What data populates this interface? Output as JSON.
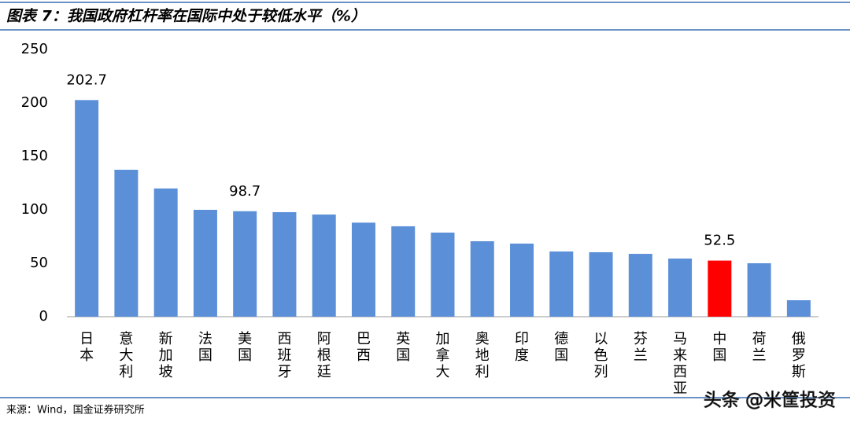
{
  "header": {
    "title": "图表 7：我国政府杠杆率在国际中处于较低水平（%）"
  },
  "chart_data": {
    "type": "bar",
    "categories": [
      "日本",
      "意大利",
      "新加坡",
      "法国",
      "美国",
      "西班牙",
      "阿根廷",
      "巴西",
      "英国",
      "加拿大",
      "奥地利",
      "印度",
      "德国",
      "以色列",
      "芬兰",
      "马来西亚",
      "中国",
      "荷兰",
      "俄罗斯"
    ],
    "values": [
      202.7,
      137.5,
      120,
      100,
      98.7,
      97.8,
      95.6,
      88,
      84.6,
      78.7,
      70.6,
      68.4,
      61,
      60.3,
      58.8,
      54.4,
      52.5,
      50,
      15.4
    ],
    "value_labels": [
      "202.7",
      null,
      null,
      null,
      "98.7",
      null,
      null,
      null,
      null,
      null,
      null,
      null,
      null,
      null,
      null,
      null,
      "52.5",
      null,
      null
    ],
    "colors": [
      "#5b8fd8",
      "#5b8fd8",
      "#5b8fd8",
      "#5b8fd8",
      "#5b8fd8",
      "#5b8fd8",
      "#5b8fd8",
      "#5b8fd8",
      "#5b8fd8",
      "#5b8fd8",
      "#5b8fd8",
      "#5b8fd8",
      "#5b8fd8",
      "#5b8fd8",
      "#5b8fd8",
      "#5b8fd8",
      "#ff0000",
      "#5b8fd8",
      "#5b8fd8"
    ],
    "ylim": [
      0,
      250
    ],
    "yticks": [
      0,
      50,
      100,
      150,
      200,
      250
    ],
    "grid": false
  },
  "footer": {
    "source": "来源：Wind，国金证券研究所",
    "watermark": "头条 @米筐投资"
  }
}
